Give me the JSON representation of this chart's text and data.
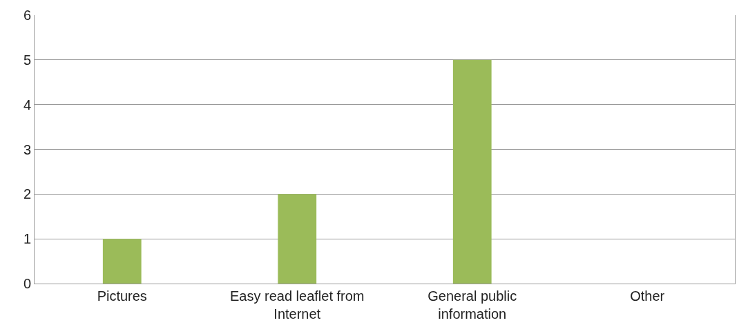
{
  "chart_data": {
    "type": "bar",
    "categories": [
      "Pictures",
      "Easy read leaflet from Internet",
      "General public information",
      "Other"
    ],
    "series": [
      {
        "color": "#9bbb59",
        "values": [
          1,
          2,
          5,
          0
        ]
      }
    ],
    "ylim": [
      0,
      6
    ],
    "yticks": [
      0,
      1,
      2,
      3,
      4,
      5,
      6
    ],
    "grid": "y"
  }
}
